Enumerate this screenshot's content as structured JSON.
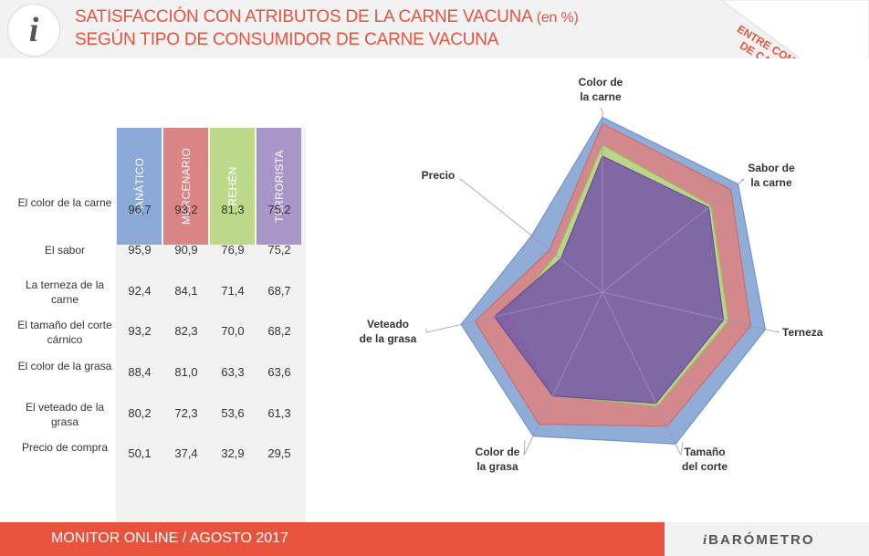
{
  "header": {
    "logo_letter": "i",
    "title_line1": "SATISFACCIÓN CON ATRIBUTOS DE LA CARNE VACUNA",
    "title_unit": "(en %)",
    "title_line2": "SEGÚN TIPO DE CONSUMIDOR DE CARNE VACUNA",
    "corner_label": "ENTRE COMPRADORES DE CARNE VACUNA"
  },
  "colors": {
    "accent": "#e8533e",
    "fanatico": "#8aa9d6",
    "mercenario": "#d98586",
    "rehen": "#bcd98a",
    "terrorista": "#a996c9"
  },
  "chart_data": {
    "type": "radar",
    "title": "Satisfacción con atributos de la carne vacuna (en %)",
    "categories": [
      "Color de la carne",
      "Sabor de la carne",
      "Terneza",
      "Tamaño del corte",
      "Color de la grasa",
      "Veteado de la grasa",
      "Precio"
    ],
    "table_row_labels": [
      "El color de la carne",
      "El sabor",
      "La terneza de la carne",
      "El tamaño del corte cárnico",
      "El color de la grasa",
      "El veteado de la grasa",
      "Precio de compra"
    ],
    "series": [
      {
        "name": "FANÁTICO",
        "values": [
          96.7,
          95.9,
          92.4,
          93.2,
          88.4,
          80.2,
          50.1
        ]
      },
      {
        "name": "MERCENARIO",
        "values": [
          93.2,
          90.9,
          84.1,
          82.3,
          81.0,
          72.3,
          37.4
        ]
      },
      {
        "name": "REHÉN",
        "values": [
          81.3,
          76.9,
          71.4,
          70.0,
          63.3,
          53.6,
          32.9
        ]
      },
      {
        "name": "TERRORISTA",
        "values": [
          75.2,
          75.2,
          68.7,
          68.2,
          63.6,
          61.3,
          29.5
        ]
      }
    ],
    "table_values": [
      [
        "96,7",
        "93,2",
        "81,3",
        "75,2"
      ],
      [
        "95,9",
        "90,9",
        "76,9",
        "75,2"
      ],
      [
        "92,4",
        "84,1",
        "71,4",
        "68,7"
      ],
      [
        "93,2",
        "82,3",
        "70,0",
        "68,2"
      ],
      [
        "88,4",
        "81,0",
        "63,3",
        "63,6"
      ],
      [
        "80,2",
        "72,3",
        "53,6",
        "61,3"
      ],
      [
        "50,1",
        "37,4",
        "32,9",
        "29,5"
      ]
    ],
    "axis_labels": [
      [
        "Color de",
        "la carne"
      ],
      [
        "Sabor de",
        "la carne"
      ],
      [
        "Terneza"
      ],
      [
        "Tamaño",
        "del corte"
      ],
      [
        "Color de",
        "la grasa"
      ],
      [
        "Veteado",
        "de la grasa"
      ],
      [
        "Precio"
      ]
    ],
    "rmax": 100
  },
  "footer": {
    "left": "MONITOR ONLINE / AGOSTO 2017",
    "brand": "BARÓMETRO",
    "brand_mark": "i"
  }
}
